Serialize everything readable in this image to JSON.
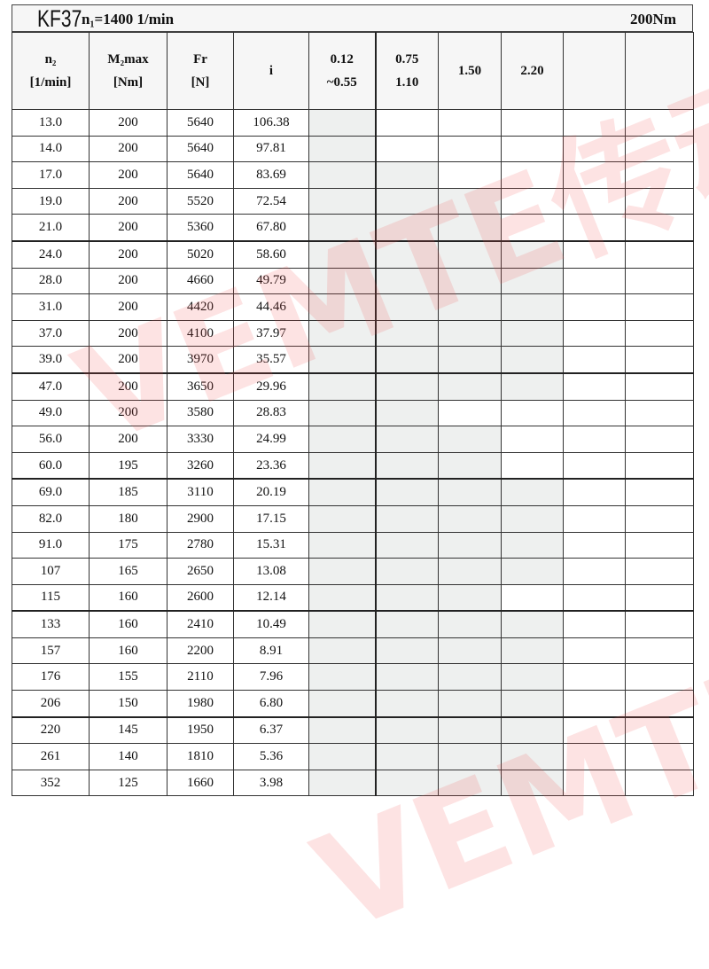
{
  "title": {
    "model": "KF37",
    "input_speed": "n₁=1400 1/min",
    "max_torque": "200Nm"
  },
  "headers": {
    "n2": [
      "n₂",
      "[1/min]"
    ],
    "m2max": [
      "M₂max",
      "[Nm]"
    ],
    "fr": [
      "Fr",
      "[N]"
    ],
    "i": "i",
    "power_columns": [
      [
        "0.12",
        "~0.55"
      ],
      [
        "0.75",
        "1.10"
      ],
      [
        "1.50"
      ],
      [
        "2.20"
      ],
      [],
      []
    ]
  },
  "rows": [
    {
      "n2": "13.0",
      "m2max": "200",
      "fr": "5640",
      "i": "106.38",
      "shaded": [
        true,
        false,
        false,
        false,
        false,
        false
      ]
    },
    {
      "n2": "14.0",
      "m2max": "200",
      "fr": "5640",
      "i": "97.81",
      "shaded": [
        true,
        false,
        false,
        false,
        false,
        false
      ]
    },
    {
      "n2": "17.0",
      "m2max": "200",
      "fr": "5640",
      "i": "83.69",
      "shaded": [
        true,
        true,
        false,
        false,
        false,
        false
      ]
    },
    {
      "n2": "19.0",
      "m2max": "200",
      "fr": "5520",
      "i": "72.54",
      "shaded": [
        true,
        true,
        true,
        false,
        false,
        false
      ]
    },
    {
      "n2": "21.0",
      "m2max": "200",
      "fr": "5360",
      "i": "67.80",
      "shaded": [
        true,
        true,
        true,
        false,
        false,
        false
      ]
    },
    {
      "n2": "24.0",
      "m2max": "200",
      "fr": "5020",
      "i": "58.60",
      "shaded": [
        true,
        true,
        true,
        true,
        false,
        false
      ]
    },
    {
      "n2": "28.0",
      "m2max": "200",
      "fr": "4660",
      "i": "49.79",
      "shaded": [
        true,
        true,
        true,
        true,
        false,
        false
      ]
    },
    {
      "n2": "31.0",
      "m2max": "200",
      "fr": "4420",
      "i": "44.46",
      "shaded": [
        true,
        true,
        true,
        true,
        false,
        false
      ]
    },
    {
      "n2": "37.0",
      "m2max": "200",
      "fr": "4100",
      "i": "37.97",
      "shaded": [
        true,
        true,
        true,
        true,
        false,
        false
      ]
    },
    {
      "n2": "39.0",
      "m2max": "200",
      "fr": "3970",
      "i": "35.57",
      "shaded": [
        true,
        true,
        true,
        true,
        false,
        false
      ]
    },
    {
      "n2": "47.0",
      "m2max": "200",
      "fr": "3650",
      "i": "29.96",
      "shaded": [
        true,
        true,
        true,
        true,
        false,
        false
      ]
    },
    {
      "n2": "49.0",
      "m2max": "200",
      "fr": "3580",
      "i": "28.83",
      "shaded": [
        true,
        true,
        false,
        false,
        false,
        false
      ]
    },
    {
      "n2": "56.0",
      "m2max": "200",
      "fr": "3330",
      "i": "24.99",
      "shaded": [
        true,
        true,
        true,
        false,
        false,
        false
      ]
    },
    {
      "n2": "60.0",
      "m2max": "195",
      "fr": "3260",
      "i": "23.36",
      "shaded": [
        true,
        true,
        true,
        false,
        false,
        false
      ]
    },
    {
      "n2": "69.0",
      "m2max": "185",
      "fr": "3110",
      "i": "20.19",
      "shaded": [
        true,
        true,
        true,
        true,
        false,
        false
      ]
    },
    {
      "n2": "82.0",
      "m2max": "180",
      "fr": "2900",
      "i": "17.15",
      "shaded": [
        true,
        true,
        true,
        true,
        false,
        false
      ]
    },
    {
      "n2": "91.0",
      "m2max": "175",
      "fr": "2780",
      "i": "15.31",
      "shaded": [
        true,
        true,
        true,
        true,
        false,
        false
      ]
    },
    {
      "n2": "107",
      "m2max": "165",
      "fr": "2650",
      "i": "13.08",
      "shaded": [
        true,
        true,
        true,
        true,
        false,
        false
      ]
    },
    {
      "n2": "115",
      "m2max": "160",
      "fr": "2600",
      "i": "12.14",
      "shaded": [
        true,
        true,
        true,
        false,
        false,
        false
      ]
    },
    {
      "n2": "133",
      "m2max": "160",
      "fr": "2410",
      "i": "10.49",
      "shaded": [
        true,
        true,
        true,
        true,
        false,
        false
      ]
    },
    {
      "n2": "157",
      "m2max": "160",
      "fr": "2200",
      "i": "8.91",
      "shaded": [
        true,
        true,
        true,
        true,
        false,
        false
      ]
    },
    {
      "n2": "176",
      "m2max": "155",
      "fr": "2110",
      "i": "7.96",
      "shaded": [
        true,
        true,
        true,
        true,
        false,
        false
      ]
    },
    {
      "n2": "206",
      "m2max": "150",
      "fr": "1980",
      "i": "6.80",
      "shaded": [
        true,
        true,
        true,
        true,
        false,
        false
      ]
    },
    {
      "n2": "220",
      "m2max": "145",
      "fr": "1950",
      "i": "6.37",
      "shaded": [
        true,
        true,
        true,
        true,
        false,
        false
      ]
    },
    {
      "n2": "261",
      "m2max": "140",
      "fr": "1810",
      "i": "5.36",
      "shaded": [
        true,
        true,
        true,
        true,
        false,
        false
      ]
    },
    {
      "n2": "352",
      "m2max": "125",
      "fr": "1660",
      "i": "3.98",
      "shaded": [
        true,
        true,
        true,
        true,
        false,
        false
      ]
    }
  ],
  "watermark": "VEMTE传动",
  "colors": {
    "shaded_cell": "#eef0ef",
    "watermark": "#f05050",
    "grid": "#333333"
  }
}
